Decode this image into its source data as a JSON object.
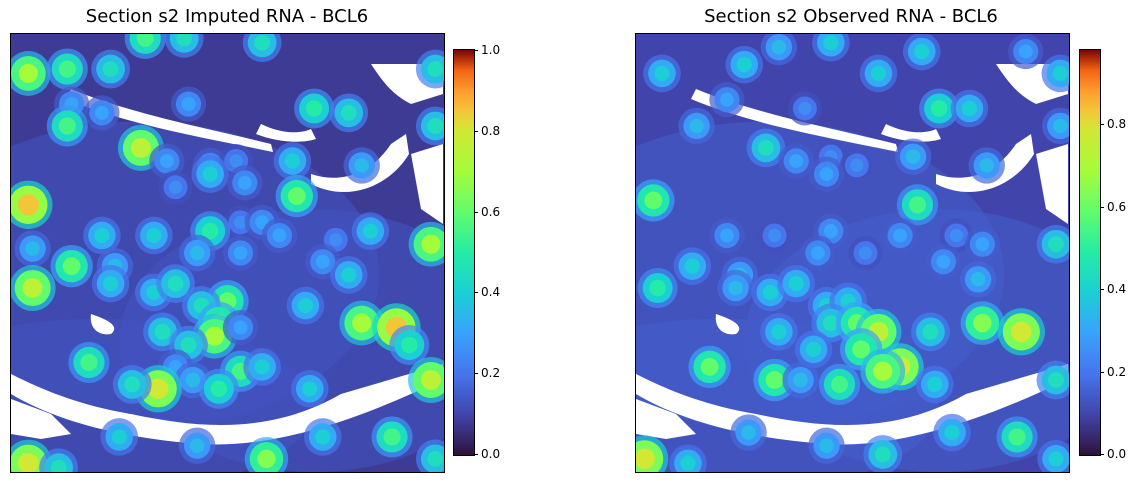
{
  "chart_data": [
    {
      "type": "heatmap",
      "title": "Section s2 Imputed RNA - BCL6",
      "xlabel": "",
      "ylabel": "",
      "colormap": "turbo",
      "colorbar": {
        "min": 0.0,
        "max": 1.0,
        "ticks": [
          "0.0",
          "0.2",
          "0.4",
          "0.6",
          "0.8",
          "1.0"
        ],
        "tick_values": [
          0.0,
          0.2,
          0.4,
          0.6,
          0.8,
          1.0
        ]
      },
      "background_level": 0.08,
      "spots": [
        {
          "x": 0.04,
          "y": 0.09,
          "v": 0.7
        },
        {
          "x": 0.13,
          "y": 0.08,
          "v": 0.55
        },
        {
          "x": 0.23,
          "y": 0.08,
          "v": 0.45
        },
        {
          "x": 0.31,
          "y": 0.01,
          "v": 0.55
        },
        {
          "x": 0.4,
          "y": 0.01,
          "v": 0.45
        },
        {
          "x": 0.58,
          "y": 0.02,
          "v": 0.45
        },
        {
          "x": 0.14,
          "y": 0.16,
          "v": 0.3
        },
        {
          "x": 0.21,
          "y": 0.18,
          "v": 0.3
        },
        {
          "x": 0.41,
          "y": 0.16,
          "v": 0.3
        },
        {
          "x": 0.7,
          "y": 0.17,
          "v": 0.5
        },
        {
          "x": 0.78,
          "y": 0.18,
          "v": 0.45
        },
        {
          "x": 0.98,
          "y": 0.08,
          "v": 0.45
        },
        {
          "x": 0.13,
          "y": 0.21,
          "v": 0.55
        },
        {
          "x": 0.3,
          "y": 0.26,
          "v": 0.75
        },
        {
          "x": 0.36,
          "y": 0.29,
          "v": 0.3
        },
        {
          "x": 0.46,
          "y": 0.3,
          "v": 0.3
        },
        {
          "x": 0.52,
          "y": 0.29,
          "v": 0.25
        },
        {
          "x": 0.65,
          "y": 0.29,
          "v": 0.4
        },
        {
          "x": 0.81,
          "y": 0.3,
          "v": 0.35
        },
        {
          "x": 0.98,
          "y": 0.21,
          "v": 0.45
        },
        {
          "x": 0.46,
          "y": 0.32,
          "v": 0.4
        },
        {
          "x": 0.54,
          "y": 0.34,
          "v": 0.3
        },
        {
          "x": 0.04,
          "y": 0.39,
          "v": 0.85
        },
        {
          "x": 0.38,
          "y": 0.35,
          "v": 0.25
        },
        {
          "x": 0.53,
          "y": 0.43,
          "v": 0.25
        },
        {
          "x": 0.58,
          "y": 0.43,
          "v": 0.3
        },
        {
          "x": 0.66,
          "y": 0.37,
          "v": 0.6
        },
        {
          "x": 0.83,
          "y": 0.45,
          "v": 0.4
        },
        {
          "x": 0.21,
          "y": 0.46,
          "v": 0.4
        },
        {
          "x": 0.33,
          "y": 0.46,
          "v": 0.4
        },
        {
          "x": 0.46,
          "y": 0.45,
          "v": 0.5
        },
        {
          "x": 0.62,
          "y": 0.46,
          "v": 0.3
        },
        {
          "x": 0.75,
          "y": 0.47,
          "v": 0.25
        },
        {
          "x": 0.05,
          "y": 0.49,
          "v": 0.35
        },
        {
          "x": 0.97,
          "y": 0.48,
          "v": 0.7
        },
        {
          "x": 0.14,
          "y": 0.53,
          "v": 0.6
        },
        {
          "x": 0.24,
          "y": 0.53,
          "v": 0.35
        },
        {
          "x": 0.43,
          "y": 0.5,
          "v": 0.35
        },
        {
          "x": 0.53,
          "y": 0.5,
          "v": 0.3
        },
        {
          "x": 0.72,
          "y": 0.52,
          "v": 0.3
        },
        {
          "x": 0.78,
          "y": 0.55,
          "v": 0.4
        },
        {
          "x": 0.05,
          "y": 0.58,
          "v": 0.75
        },
        {
          "x": 0.23,
          "y": 0.57,
          "v": 0.4
        },
        {
          "x": 0.33,
          "y": 0.59,
          "v": 0.4
        },
        {
          "x": 0.38,
          "y": 0.57,
          "v": 0.45
        },
        {
          "x": 0.5,
          "y": 0.61,
          "v": 0.6
        },
        {
          "x": 0.44,
          "y": 0.62,
          "v": 0.45
        },
        {
          "x": 0.48,
          "y": 0.66,
          "v": 0.6
        },
        {
          "x": 0.47,
          "y": 0.69,
          "v": 0.7
        },
        {
          "x": 0.68,
          "y": 0.62,
          "v": 0.4
        },
        {
          "x": 0.35,
          "y": 0.68,
          "v": 0.45
        },
        {
          "x": 0.41,
          "y": 0.71,
          "v": 0.45
        },
        {
          "x": 0.53,
          "y": 0.67,
          "v": 0.3
        },
        {
          "x": 0.81,
          "y": 0.66,
          "v": 0.7
        },
        {
          "x": 0.89,
          "y": 0.67,
          "v": 0.85
        },
        {
          "x": 0.92,
          "y": 0.71,
          "v": 0.5
        },
        {
          "x": 0.18,
          "y": 0.75,
          "v": 0.55
        },
        {
          "x": 0.38,
          "y": 0.76,
          "v": 0.3
        },
        {
          "x": 0.42,
          "y": 0.79,
          "v": 0.35
        },
        {
          "x": 0.53,
          "y": 0.77,
          "v": 0.55
        },
        {
          "x": 0.58,
          "y": 0.76,
          "v": 0.4
        },
        {
          "x": 0.69,
          "y": 0.81,
          "v": 0.4
        },
        {
          "x": 0.34,
          "y": 0.81,
          "v": 0.8
        },
        {
          "x": 0.48,
          "y": 0.81,
          "v": 0.5
        },
        {
          "x": 0.28,
          "y": 0.8,
          "v": 0.45
        },
        {
          "x": 0.97,
          "y": 0.79,
          "v": 0.75
        },
        {
          "x": 0.25,
          "y": 0.92,
          "v": 0.4
        },
        {
          "x": 0.43,
          "y": 0.94,
          "v": 0.35
        },
        {
          "x": 0.72,
          "y": 0.92,
          "v": 0.4
        },
        {
          "x": 0.88,
          "y": 0.92,
          "v": 0.55
        },
        {
          "x": 0.04,
          "y": 0.98,
          "v": 0.8
        },
        {
          "x": 0.59,
          "y": 0.97,
          "v": 0.65
        },
        {
          "x": 0.11,
          "y": 0.99,
          "v": 0.45
        },
        {
          "x": 0.98,
          "y": 0.97,
          "v": 0.45
        }
      ]
    },
    {
      "type": "heatmap",
      "title": "Section s2 Observed RNA - BCL6",
      "xlabel": "",
      "ylabel": "",
      "colormap": "turbo",
      "colorbar": {
        "min": 0.0,
        "max": 0.98,
        "ticks": [
          "0.0",
          "0.2",
          "0.4",
          "0.6",
          "0.8"
        ],
        "tick_values": [
          0.0,
          0.2,
          0.4,
          0.6,
          0.8
        ]
      },
      "background_level": 0.1,
      "spots": [
        {
          "x": 0.06,
          "y": 0.09,
          "v": 0.4
        },
        {
          "x": 0.25,
          "y": 0.07,
          "v": 0.4
        },
        {
          "x": 0.33,
          "y": 0.03,
          "v": 0.35
        },
        {
          "x": 0.45,
          "y": 0.02,
          "v": 0.4
        },
        {
          "x": 0.56,
          "y": 0.09,
          "v": 0.4
        },
        {
          "x": 0.66,
          "y": 0.04,
          "v": 0.4
        },
        {
          "x": 0.9,
          "y": 0.04,
          "v": 0.3
        },
        {
          "x": 0.98,
          "y": 0.09,
          "v": 0.4
        },
        {
          "x": 0.21,
          "y": 0.15,
          "v": 0.3
        },
        {
          "x": 0.39,
          "y": 0.17,
          "v": 0.25
        },
        {
          "x": 0.7,
          "y": 0.17,
          "v": 0.5
        },
        {
          "x": 0.77,
          "y": 0.17,
          "v": 0.4
        },
        {
          "x": 0.98,
          "y": 0.21,
          "v": 0.35
        },
        {
          "x": 0.14,
          "y": 0.21,
          "v": 0.35
        },
        {
          "x": 0.3,
          "y": 0.26,
          "v": 0.45
        },
        {
          "x": 0.37,
          "y": 0.29,
          "v": 0.3
        },
        {
          "x": 0.45,
          "y": 0.28,
          "v": 0.25
        },
        {
          "x": 0.51,
          "y": 0.3,
          "v": 0.25
        },
        {
          "x": 0.64,
          "y": 0.28,
          "v": 0.35
        },
        {
          "x": 0.81,
          "y": 0.3,
          "v": 0.35
        },
        {
          "x": 0.04,
          "y": 0.38,
          "v": 0.6
        },
        {
          "x": 0.44,
          "y": 0.32,
          "v": 0.3
        },
        {
          "x": 0.65,
          "y": 0.39,
          "v": 0.55
        },
        {
          "x": 0.21,
          "y": 0.46,
          "v": 0.3
        },
        {
          "x": 0.32,
          "y": 0.46,
          "v": 0.25
        },
        {
          "x": 0.45,
          "y": 0.45,
          "v": 0.3
        },
        {
          "x": 0.61,
          "y": 0.46,
          "v": 0.3
        },
        {
          "x": 0.74,
          "y": 0.46,
          "v": 0.25
        },
        {
          "x": 0.8,
          "y": 0.48,
          "v": 0.3
        },
        {
          "x": 0.97,
          "y": 0.48,
          "v": 0.45
        },
        {
          "x": 0.13,
          "y": 0.53,
          "v": 0.4
        },
        {
          "x": 0.24,
          "y": 0.55,
          "v": 0.35
        },
        {
          "x": 0.42,
          "y": 0.5,
          "v": 0.3
        },
        {
          "x": 0.53,
          "y": 0.5,
          "v": 0.25
        },
        {
          "x": 0.71,
          "y": 0.52,
          "v": 0.3
        },
        {
          "x": 0.79,
          "y": 0.56,
          "v": 0.35
        },
        {
          "x": 0.05,
          "y": 0.58,
          "v": 0.5
        },
        {
          "x": 0.23,
          "y": 0.58,
          "v": 0.35
        },
        {
          "x": 0.31,
          "y": 0.59,
          "v": 0.4
        },
        {
          "x": 0.37,
          "y": 0.57,
          "v": 0.4
        },
        {
          "x": 0.44,
          "y": 0.62,
          "v": 0.4
        },
        {
          "x": 0.49,
          "y": 0.61,
          "v": 0.4
        },
        {
          "x": 0.45,
          "y": 0.66,
          "v": 0.45
        },
        {
          "x": 0.51,
          "y": 0.66,
          "v": 0.6
        },
        {
          "x": 0.56,
          "y": 0.68,
          "v": 0.75
        },
        {
          "x": 0.68,
          "y": 0.68,
          "v": 0.45
        },
        {
          "x": 0.8,
          "y": 0.66,
          "v": 0.65
        },
        {
          "x": 0.89,
          "y": 0.68,
          "v": 0.8
        },
        {
          "x": 0.33,
          "y": 0.68,
          "v": 0.4
        },
        {
          "x": 0.41,
          "y": 0.72,
          "v": 0.4
        },
        {
          "x": 0.52,
          "y": 0.72,
          "v": 0.6
        },
        {
          "x": 0.61,
          "y": 0.76,
          "v": 0.8
        },
        {
          "x": 0.57,
          "y": 0.77,
          "v": 0.7
        },
        {
          "x": 0.17,
          "y": 0.76,
          "v": 0.6
        },
        {
          "x": 0.32,
          "y": 0.79,
          "v": 0.6
        },
        {
          "x": 0.47,
          "y": 0.8,
          "v": 0.55
        },
        {
          "x": 0.38,
          "y": 0.79,
          "v": 0.35
        },
        {
          "x": 0.69,
          "y": 0.8,
          "v": 0.4
        },
        {
          "x": 0.97,
          "y": 0.79,
          "v": 0.45
        },
        {
          "x": 0.26,
          "y": 0.91,
          "v": 0.35
        },
        {
          "x": 0.44,
          "y": 0.94,
          "v": 0.35
        },
        {
          "x": 0.57,
          "y": 0.96,
          "v": 0.45
        },
        {
          "x": 0.73,
          "y": 0.91,
          "v": 0.4
        },
        {
          "x": 0.88,
          "y": 0.92,
          "v": 0.55
        },
        {
          "x": 0.02,
          "y": 0.97,
          "v": 0.8
        },
        {
          "x": 0.12,
          "y": 0.98,
          "v": 0.4
        },
        {
          "x": 0.97,
          "y": 0.97,
          "v": 0.4
        }
      ]
    }
  ]
}
